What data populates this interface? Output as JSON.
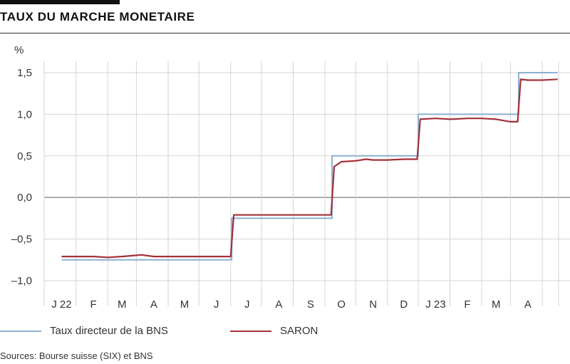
{
  "title": "TAUX DU MARCHE MONETAIRE",
  "unit": "%",
  "source": "Sources: Bourse suisse (SIX) et BNS",
  "colors": {
    "policy": "#8db0cf",
    "saron": "#a3303a",
    "grid": "#d5d5d5",
    "zero": "#888888"
  },
  "chart_data": {
    "type": "line",
    "title": "TAUX DU MARCHE MONETAIRE",
    "ylabel": "%",
    "ylim": [
      -1.0,
      1.5
    ],
    "y_ticks": [
      "1,5",
      "1,0",
      "0,5",
      "0,0",
      "–0,5",
      "–1,0"
    ],
    "y_tick_values": [
      1.5,
      1.0,
      0.5,
      0.0,
      -0.5,
      -1.0
    ],
    "x_ticks": [
      "J 22",
      "F",
      "M",
      "A",
      "M",
      "J",
      "J",
      "A",
      "S",
      "O",
      "N",
      "D",
      "J 23",
      "F",
      "M",
      "A"
    ],
    "x_tick_values": [
      "2022-01",
      "2022-02",
      "2022-03",
      "2022-04",
      "2022-05",
      "2022-06",
      "2022-07",
      "2022-08",
      "2022-09",
      "2022-10",
      "2022-11",
      "2022-12",
      "2023-01",
      "2023-02",
      "2023-03",
      "2023-04"
    ],
    "grid": true,
    "legend": "bottom",
    "series": [
      {
        "name": "Taux directeur de la BNS",
        "step": true,
        "points": [
          [
            "2022-01-01",
            -0.75
          ],
          [
            "2022-06-16",
            -0.75
          ],
          [
            "2022-06-16",
            -0.25
          ],
          [
            "2022-09-22",
            -0.25
          ],
          [
            "2022-09-22",
            0.5
          ],
          [
            "2022-12-15",
            0.5
          ],
          [
            "2022-12-15",
            1.0
          ],
          [
            "2023-03-23",
            1.0
          ],
          [
            "2023-03-23",
            1.5
          ],
          [
            "2023-04-30",
            1.5
          ]
        ]
      },
      {
        "name": "SARON",
        "points": [
          [
            "2022-01-01",
            -0.71
          ],
          [
            "2022-01-15",
            -0.71
          ],
          [
            "2022-02-01",
            -0.71
          ],
          [
            "2022-02-15",
            -0.72
          ],
          [
            "2022-03-01",
            -0.71
          ],
          [
            "2022-03-10",
            -0.7
          ],
          [
            "2022-03-20",
            -0.69
          ],
          [
            "2022-04-01",
            -0.71
          ],
          [
            "2022-04-15",
            -0.71
          ],
          [
            "2022-05-01",
            -0.71
          ],
          [
            "2022-05-15",
            -0.71
          ],
          [
            "2022-06-01",
            -0.71
          ],
          [
            "2022-06-15",
            -0.71
          ],
          [
            "2022-06-18",
            -0.21
          ],
          [
            "2022-07-01",
            -0.21
          ],
          [
            "2022-07-15",
            -0.21
          ],
          [
            "2022-08-01",
            -0.21
          ],
          [
            "2022-08-15",
            -0.21
          ],
          [
            "2022-09-01",
            -0.21
          ],
          [
            "2022-09-21",
            -0.21
          ],
          [
            "2022-09-24",
            0.37
          ],
          [
            "2022-10-01",
            0.43
          ],
          [
            "2022-10-15",
            0.44
          ],
          [
            "2022-10-25",
            0.46
          ],
          [
            "2022-11-01",
            0.45
          ],
          [
            "2022-11-15",
            0.45
          ],
          [
            "2022-12-01",
            0.46
          ],
          [
            "2022-12-14",
            0.46
          ],
          [
            "2022-12-17",
            0.94
          ],
          [
            "2023-01-01",
            0.95
          ],
          [
            "2023-01-15",
            0.94
          ],
          [
            "2023-02-01",
            0.95
          ],
          [
            "2023-02-15",
            0.95
          ],
          [
            "2023-03-01",
            0.94
          ],
          [
            "2023-03-15",
            0.91
          ],
          [
            "2023-03-22",
            0.91
          ],
          [
            "2023-03-25",
            1.42
          ],
          [
            "2023-04-01",
            1.41
          ],
          [
            "2023-04-15",
            1.41
          ],
          [
            "2023-04-30",
            1.42
          ]
        ]
      }
    ]
  }
}
